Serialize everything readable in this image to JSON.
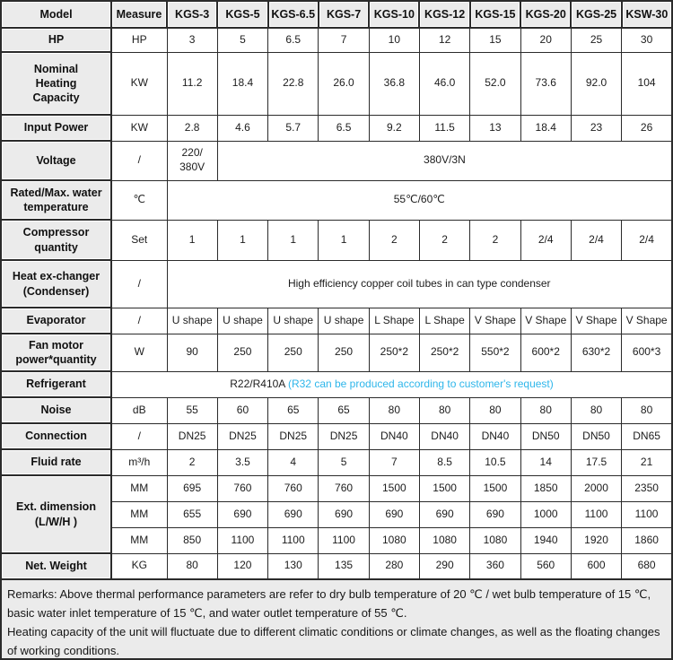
{
  "colors": {
    "highlight": "#2eb6ea",
    "label_bg": "#ebebeb",
    "border": "#2b2b2b"
  },
  "table": {
    "header": [
      "Model",
      "Measure",
      "KGS-3",
      "KGS-5",
      "KGS-6.5",
      "KGS-7",
      "KGS-10",
      "KGS-12",
      "KGS-15",
      "KGS-20",
      "KGS-25",
      "KSW-30"
    ],
    "rows": [
      {
        "name": "hp",
        "label": [
          "HP"
        ],
        "subrows": [
          {
            "measure": "HP",
            "cells": [
              "3",
              "5",
              "6.5",
              "7",
              "10",
              "12",
              "15",
              "20",
              "25",
              "30"
            ]
          }
        ]
      },
      {
        "name": "nominal-heating-capacity",
        "label": [
          "Nominal",
          "Heating",
          "Capacity"
        ],
        "subrows": [
          {
            "measure": "KW",
            "cells": [
              "11.2",
              "18.4",
              "22.8",
              "26.0",
              "36.8",
              "46.0",
              "52.0",
              "73.6",
              "92.0",
              "104"
            ]
          }
        ]
      },
      {
        "name": "input-power",
        "label": [
          "Input Power"
        ],
        "subrows": [
          {
            "measure": "KW",
            "cells": [
              "2.8",
              "4.6",
              "5.7",
              "6.5",
              "9.2",
              "11.5",
              "13",
              "18.4",
              "23",
              "26"
            ]
          }
        ]
      },
      {
        "name": "voltage",
        "label": [
          "Voltage"
        ],
        "subrows": [
          {
            "measure": "/",
            "cells": [
              {
                "lines": [
                  "220/",
                  "380V"
                ]
              },
              {
                "text": "380V/3N",
                "colspan": 9
              }
            ]
          }
        ]
      },
      {
        "name": "rated-max-water-temperature",
        "label": [
          "Rated/Max. water",
          "temperature"
        ],
        "subrows": [
          {
            "measure": "℃",
            "cells": [
              {
                "text": "55℃/60℃",
                "colspan": 10
              }
            ]
          }
        ]
      },
      {
        "name": "compressor-quantity",
        "label": [
          "Compressor",
          "quantity"
        ],
        "subrows": [
          {
            "measure": "Set",
            "cells": [
              "1",
              "1",
              "1",
              "1",
              "2",
              "2",
              "2",
              "2/4",
              "2/4",
              "2/4"
            ]
          }
        ]
      },
      {
        "name": "heat-exchanger-condenser",
        "label": [
          "Heat ex-changer",
          "(Condenser)"
        ],
        "subrows": [
          {
            "measure": "/",
            "cells": [
              {
                "text": "High efficiency copper coil tubes in can type condenser",
                "colspan": 10
              }
            ]
          }
        ]
      },
      {
        "name": "evaporator",
        "label": [
          "Evaporator"
        ],
        "subrows": [
          {
            "measure": "/",
            "cells": [
              "U shape",
              "U shape",
              "U shape",
              "U shape",
              "L Shape",
              "L Shape",
              "V Shape",
              "V Shape",
              "V Shape",
              "V Shape"
            ]
          }
        ]
      },
      {
        "name": "fan-motor-power-quantity",
        "label": [
          "Fan motor",
          "power*quantity"
        ],
        "subrows": [
          {
            "measure": "W",
            "cells": [
              "90",
              "250",
              "250",
              "250",
              "250*2",
              "250*2",
              "550*2",
              "600*2",
              "630*2",
              "600*3"
            ]
          }
        ]
      },
      {
        "name": "refrigerant",
        "label": [
          "Refrigerant"
        ],
        "subrows": [
          {
            "cells": [
              {
                "colspan": 11,
                "parts": [
                  {
                    "text": "R22/R410A ",
                    "highlight": false
                  },
                  {
                    "text": "(R32 can be produced according to customer's request)",
                    "highlight": true
                  }
                ]
              }
            ]
          }
        ]
      },
      {
        "name": "noise",
        "label": [
          "Noise"
        ],
        "subrows": [
          {
            "measure": "dB",
            "cells": [
              "55",
              "60",
              "65",
              "65",
              "80",
              "80",
              "80",
              "80",
              "80",
              "80"
            ]
          }
        ]
      },
      {
        "name": "connection",
        "label": [
          "Connection"
        ],
        "subrows": [
          {
            "measure": "/",
            "cells": [
              "DN25",
              "DN25",
              "DN25",
              "DN25",
              "DN40",
              "DN40",
              "DN40",
              "DN50",
              "DN50",
              "DN65"
            ]
          }
        ]
      },
      {
        "name": "fluid-rate",
        "label": [
          "Fluid rate"
        ],
        "subrows": [
          {
            "measure": "m³/h",
            "cells": [
              "2",
              "3.5",
              "4",
              "5",
              "7",
              "8.5",
              "10.5",
              "14",
              "17.5",
              "21"
            ]
          }
        ]
      },
      {
        "name": "ext-dimension",
        "label": [
          "Ext. dimension",
          "(L/W/H )"
        ],
        "subrows": [
          {
            "measure": "MM",
            "cells": [
              "695",
              "760",
              "760",
              "760",
              "1500",
              "1500",
              "1500",
              "1850",
              "2000",
              "2350"
            ]
          },
          {
            "measure": "MM",
            "cells": [
              "655",
              "690",
              "690",
              "690",
              "690",
              "690",
              "690",
              "1000",
              "1100",
              "1100"
            ]
          },
          {
            "measure": "MM",
            "cells": [
              "850",
              "1100",
              "1100",
              "1100",
              "1080",
              "1080",
              "1080",
              "1940",
              "1920",
              "1860"
            ]
          }
        ]
      },
      {
        "name": "net-weight",
        "label": [
          "Net. Weight"
        ],
        "subrows": [
          {
            "measure": "KG",
            "cells": [
              "80",
              "120",
              "130",
              "135",
              "280",
              "290",
              "360",
              "560",
              "600",
              "680"
            ]
          }
        ]
      }
    ]
  },
  "remarks": {
    "line1": "Remarks: Above thermal performance parameters are refer to dry bulb temperature of 20 ℃ / wet bulb temperature of 15 ℃, basic water inlet temperature of 15 ℃, and water outlet temperature of 55 ℃.",
    "line2": "Heating capacity of the unit will fluctuate due to different climatic conditions or climate changes, as well as the floating changes of working conditions."
  }
}
